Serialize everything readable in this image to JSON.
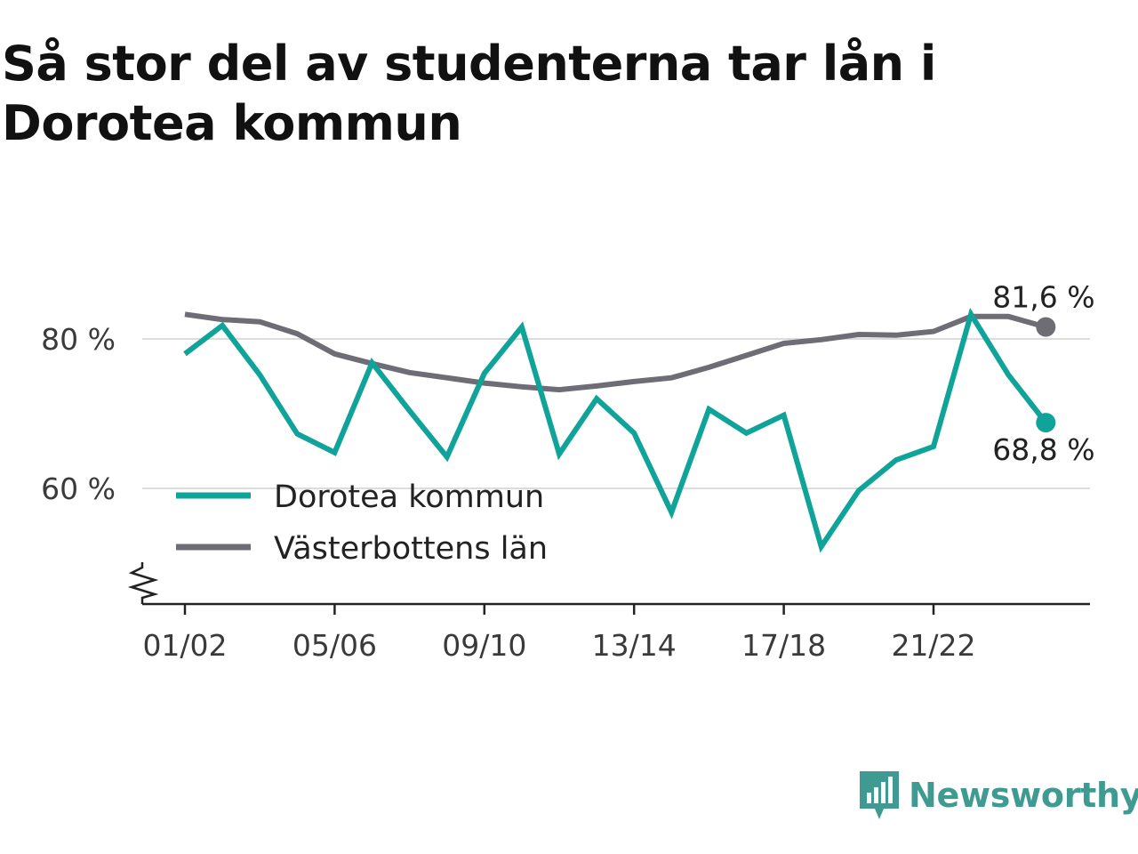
{
  "title": "Så stor del av studenterna tar lån i Dorotea kommun",
  "brand": {
    "name": "Newsworthy",
    "color": "#3f9b92",
    "icon": "newsworthy-logo-icon"
  },
  "chart_data": {
    "type": "line",
    "title": "Så stor del av studenterna tar lån i Dorotea kommun",
    "xlabel": "",
    "ylabel": "",
    "x": [
      "01/02",
      "02/03",
      "03/04",
      "04/05",
      "05/06",
      "06/07",
      "07/08",
      "08/09",
      "09/10",
      "10/11",
      "11/12",
      "12/13",
      "13/14",
      "14/15",
      "15/16",
      "16/17",
      "17/18",
      "18/19",
      "19/20",
      "20/21",
      "21/22",
      "22/23",
      "23/24",
      "24/25"
    ],
    "x_tick_labels": [
      "01/02",
      "05/06",
      "09/10",
      "13/14",
      "17/18",
      "21/22"
    ],
    "y_tick_labels": [
      "80 %",
      "60 %"
    ],
    "y_ticks": [
      80,
      60
    ],
    "ylim": [
      45,
      87
    ],
    "y_axis_break": true,
    "grid": true,
    "legend_position": "lower-left",
    "series": [
      {
        "name": "Dorotea kommun",
        "color": "#0fa399",
        "values": [
          78.0,
          81.8,
          75.2,
          67.3,
          64.8,
          76.8,
          70.4,
          64.2,
          75.4,
          81.6,
          64.6,
          72.0,
          67.4,
          56.8,
          70.6,
          67.4,
          69.8,
          52.2,
          59.7,
          63.8,
          65.6,
          83.3,
          75.2,
          68.8
        ],
        "end_label": "68,8 %"
      },
      {
        "name": "Västerbottens län",
        "color": "#6e6c75",
        "values": [
          83.3,
          82.6,
          82.3,
          80.7,
          78.0,
          76.7,
          75.5,
          74.8,
          74.1,
          73.6,
          73.2,
          73.7,
          74.3,
          74.8,
          76.2,
          77.8,
          79.4,
          79.9,
          80.6,
          80.5,
          81.0,
          83.0,
          83.0,
          81.6
        ],
        "end_label": "81,6 %"
      }
    ]
  }
}
